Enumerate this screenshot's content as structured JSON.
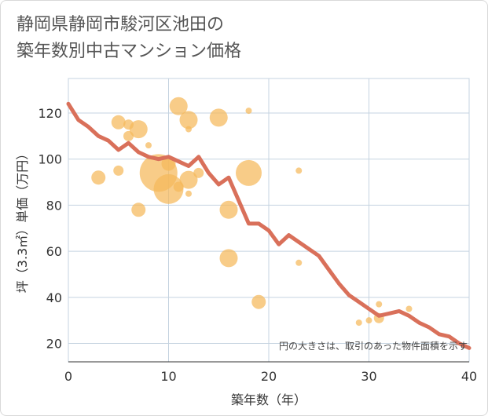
{
  "title_lines": [
    "静岡県静岡市駿河区池田の",
    "築年数別中古マンション価格"
  ],
  "chart_data": {
    "type": "scatter",
    "title": "静岡県静岡市駿河区池田の築年数別中古マンション価格",
    "xlabel": "築年数（年）",
    "ylabel": "坪（3.3㎡）単価（万円）",
    "xlim": [
      0,
      40
    ],
    "ylim": [
      12,
      135
    ],
    "xticks": [
      0,
      10,
      20,
      30,
      40
    ],
    "yticks": [
      20,
      40,
      60,
      80,
      100,
      120
    ],
    "grid": true,
    "annotation": "円の大きさは、取引のあった物件面積を示す",
    "colors": {
      "bubble": "#f5b95a",
      "line": "#d9705a",
      "grid": "#c5d3e0"
    },
    "series": [
      {
        "kind": "bubble",
        "points": [
          {
            "x": 3,
            "y": 92,
            "size": 3
          },
          {
            "x": 5,
            "y": 116,
            "size": 3
          },
          {
            "x": 5,
            "y": 95,
            "size": 2
          },
          {
            "x": 6,
            "y": 115,
            "size": 2
          },
          {
            "x": 6,
            "y": 110,
            "size": 2
          },
          {
            "x": 7,
            "y": 113,
            "size": 4
          },
          {
            "x": 7,
            "y": 78,
            "size": 3
          },
          {
            "x": 8,
            "y": 106,
            "size": 1
          },
          {
            "x": 9,
            "y": 94,
            "size": 9
          },
          {
            "x": 10,
            "y": 98,
            "size": 3
          },
          {
            "x": 10,
            "y": 87,
            "size": 7
          },
          {
            "x": 11,
            "y": 123,
            "size": 4
          },
          {
            "x": 11,
            "y": 88,
            "size": 2
          },
          {
            "x": 12,
            "y": 117,
            "size": 4
          },
          {
            "x": 12,
            "y": 113,
            "size": 1
          },
          {
            "x": 12,
            "y": 91,
            "size": 4
          },
          {
            "x": 12,
            "y": 85,
            "size": 1
          },
          {
            "x": 13,
            "y": 94,
            "size": 2
          },
          {
            "x": 15,
            "y": 118,
            "size": 4
          },
          {
            "x": 16,
            "y": 78,
            "size": 4
          },
          {
            "x": 16,
            "y": 57,
            "size": 4
          },
          {
            "x": 18,
            "y": 121,
            "size": 1
          },
          {
            "x": 18,
            "y": 94,
            "size": 6
          },
          {
            "x": 19,
            "y": 38,
            "size": 3
          },
          {
            "x": 23,
            "y": 95,
            "size": 1
          },
          {
            "x": 23,
            "y": 55,
            "size": 1
          },
          {
            "x": 29,
            "y": 29,
            "size": 1
          },
          {
            "x": 30,
            "y": 30,
            "size": 1
          },
          {
            "x": 31,
            "y": 37,
            "size": 1
          },
          {
            "x": 31,
            "y": 31,
            "size": 2
          },
          {
            "x": 34,
            "y": 35,
            "size": 1
          }
        ]
      },
      {
        "kind": "line",
        "x": [
          0,
          1,
          2,
          3,
          4,
          5,
          6,
          7,
          8,
          9,
          10,
          11,
          12,
          13,
          14,
          15,
          16,
          17,
          18,
          19,
          20,
          21,
          22,
          23,
          24,
          25,
          26,
          27,
          28,
          29,
          30,
          31,
          32,
          33,
          34,
          35,
          36,
          37,
          38,
          39,
          40
        ],
        "y": [
          124,
          117,
          114,
          110,
          108,
          104,
          107,
          103,
          101,
          100,
          101,
          99,
          97,
          101,
          94,
          89,
          92,
          82,
          72,
          72,
          69,
          63,
          67,
          64,
          61,
          58,
          52,
          46,
          41,
          38,
          35,
          32,
          33,
          34,
          32,
          29,
          27,
          24,
          23,
          20,
          18
        ]
      }
    ]
  }
}
